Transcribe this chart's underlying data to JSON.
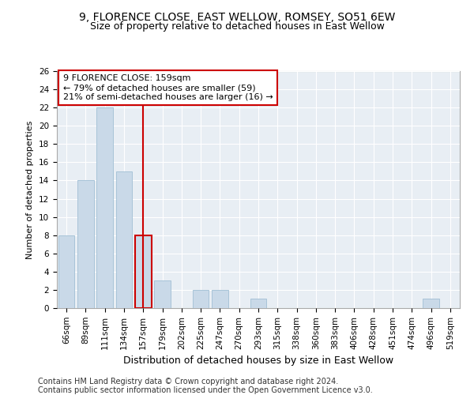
{
  "title1": "9, FLORENCE CLOSE, EAST WELLOW, ROMSEY, SO51 6EW",
  "title2": "Size of property relative to detached houses in East Wellow",
  "xlabel": "Distribution of detached houses by size in East Wellow",
  "ylabel": "Number of detached properties",
  "categories": [
    "66sqm",
    "89sqm",
    "111sqm",
    "134sqm",
    "157sqm",
    "179sqm",
    "202sqm",
    "225sqm",
    "247sqm",
    "270sqm",
    "293sqm",
    "315sqm",
    "338sqm",
    "360sqm",
    "383sqm",
    "406sqm",
    "428sqm",
    "451sqm",
    "474sqm",
    "496sqm",
    "519sqm"
  ],
  "values": [
    8,
    14,
    22,
    15,
    8,
    3,
    0,
    2,
    2,
    0,
    1,
    0,
    0,
    0,
    0,
    0,
    0,
    0,
    0,
    1,
    0
  ],
  "bar_color": "#c9d9e8",
  "bar_edge_color": "#a8c4d8",
  "highlight_index": 4,
  "highlight_edge_color": "#cc0000",
  "vline_color": "#cc0000",
  "annotation_text": "9 FLORENCE CLOSE: 159sqm\n← 79% of detached houses are smaller (59)\n21% of semi-detached houses are larger (16) →",
  "annotation_box_color": "#ffffff",
  "annotation_box_edge": "#cc0000",
  "ylim": [
    0,
    26
  ],
  "yticks": [
    0,
    2,
    4,
    6,
    8,
    10,
    12,
    14,
    16,
    18,
    20,
    22,
    24,
    26
  ],
  "footer1": "Contains HM Land Registry data © Crown copyright and database right 2024.",
  "footer2": "Contains public sector information licensed under the Open Government Licence v3.0.",
  "bg_color": "#ffffff",
  "plot_bg_color": "#e8eef4",
  "grid_color": "#ffffff",
  "title1_fontsize": 10,
  "title2_fontsize": 9,
  "xlabel_fontsize": 9,
  "ylabel_fontsize": 8,
  "tick_fontsize": 7.5,
  "annot_fontsize": 8,
  "footer_fontsize": 7
}
